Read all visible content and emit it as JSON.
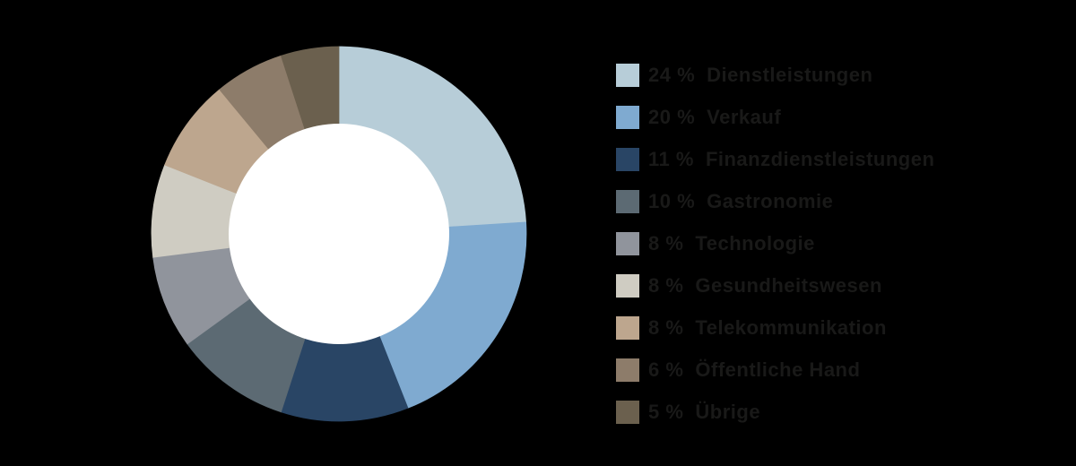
{
  "background_color": "#000000",
  "chart_data": {
    "type": "pie",
    "subtype": "donut",
    "title": "",
    "categories": [
      "Dienstleistungen",
      "Verkauf",
      "Finanzdienstleistungen",
      "Gastronomie",
      "Technologie",
      "Gesundheitswesen",
      "Telekommunikation",
      "Öffentliche Hand",
      "Übrige"
    ],
    "values": [
      24,
      20,
      11,
      10,
      8,
      8,
      8,
      6,
      5
    ],
    "unit": "%",
    "colors": [
      "#b7cdd8",
      "#7faad0",
      "#294565",
      "#5c6a73",
      "#90949c",
      "#cfccc2",
      "#bda68e",
      "#8d7c6a",
      "#6b604e"
    ],
    "start_angle_deg": 0,
    "clockwise": true,
    "inner_radius_ratio": 0.5885,
    "hole_color": "#ffffff",
    "legend_position": "right"
  },
  "legend": {
    "text_color": "#191918",
    "items": [
      {
        "percent": "24 %",
        "label": "Dienstleistungen",
        "color": "#b7cdd8"
      },
      {
        "percent": "20 %",
        "label": "Verkauf",
        "color": "#7faad0"
      },
      {
        "percent": "11 %",
        "label": "Finanzdienstleistungen",
        "color": "#294565"
      },
      {
        "percent": "10 %",
        "label": "Gastronomie",
        "color": "#5c6a73"
      },
      {
        "percent": "8 %",
        "label": "Technologie",
        "color": "#90949c"
      },
      {
        "percent": "8 %",
        "label": "Gesundheitswesen",
        "color": "#cfccc2"
      },
      {
        "percent": "8 %",
        "label": "Telekommunikation",
        "color": "#bda68e"
      },
      {
        "percent": "6 %",
        "label": "Öffentliche Hand",
        "color": "#8d7c6a"
      },
      {
        "percent": "5 %",
        "label": "Übrige",
        "color": "#6b604e"
      }
    ]
  }
}
